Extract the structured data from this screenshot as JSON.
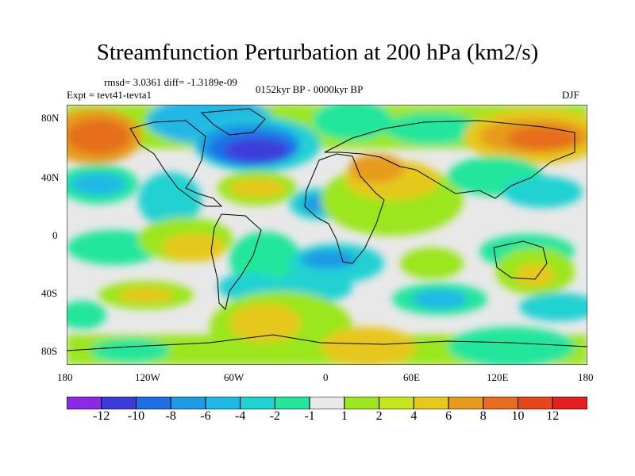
{
  "title": "Streamfunction Perturbation at 200 hPa (km2/s)",
  "stats": "rmsd= 3.0361 diff= -1.3189e-09",
  "experiment": "Expt = tevt41-tevta1",
  "period": "0152kyr BP - 0000kyr BP",
  "season": "DJF",
  "lat_labels": [
    "80N",
    "40N",
    "0",
    "40S",
    "80S"
  ],
  "lon_labels": [
    "180",
    "120W",
    "60W",
    "0",
    "60E",
    "120E",
    "180"
  ],
  "legend": {
    "labels": [
      "-12",
      "-10",
      "-8",
      "-6",
      "-4",
      "-2",
      "-1",
      "1",
      "2",
      "4",
      "6",
      "8",
      "10",
      "12"
    ],
    "colors": [
      "#8c28e8",
      "#3c3cdc",
      "#1e6ee6",
      "#1e9be6",
      "#20b8e6",
      "#20d2d2",
      "#24e69b",
      "#e8e8e8",
      "#9be61e",
      "#c8e61e",
      "#e6c81e",
      "#e69b1e",
      "#e66e1e",
      "#e6461e",
      "#e61e1e"
    ]
  }
}
